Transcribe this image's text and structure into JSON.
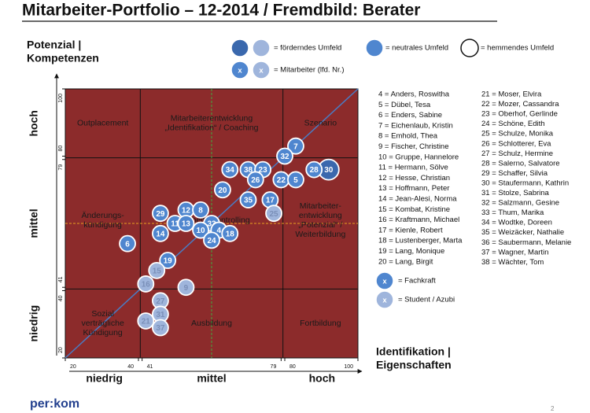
{
  "chart_data": {
    "type": "scatter",
    "title": "Mitarbeiter-Portfolio – 12-2014 / Fremdbild: Berater",
    "y_label": [
      "Potenzial |",
      "Kompetenzen"
    ],
    "x_label": [
      "Identifikation |",
      "Eigenschaften"
    ],
    "xlim": [
      20,
      100
    ],
    "ylim": [
      20,
      100
    ],
    "xticks": [
      20,
      40,
      41,
      79,
      80,
      100
    ],
    "yticks": [
      20,
      40,
      41,
      79,
      80,
      100
    ],
    "x_bands": [
      "niedrig",
      "mittel",
      "hoch"
    ],
    "y_bands": [
      "niedrig",
      "mittel",
      "hoch"
    ],
    "plot_color": "#8c2b2b",
    "x_ref_line": 60,
    "x_ref_color": "#3fae3f",
    "y_ref_line": 60,
    "y_ref_color": "#e8a020",
    "diagonal_color": "#4a7cc4",
    "regions": [
      {
        "lines": [
          "Outplacement"
        ]
      },
      {
        "lines": [
          "Mitarbeiterentwicklung",
          "„Identifikation“ / Coaching"
        ]
      },
      {
        "lines": [
          "Szenario"
        ]
      },
      {
        "lines": [
          "Änderungs-",
          "kündigung"
        ]
      },
      {
        "lines": [
          "Mitarbeitercontrolling"
        ]
      },
      {
        "lines": [
          "Mitarbeiter-",
          "entwicklung",
          "„Potenzial“ /",
          "Weiterbildung"
        ]
      },
      {
        "lines": [
          "Sozial",
          "verträgliche",
          "Kündigung"
        ]
      },
      {
        "lines": [
          "Ausbildung"
        ]
      },
      {
        "lines": [
          "Fortbildung"
        ]
      }
    ],
    "series": [
      {
        "name": "= förderndes Umfeld",
        "color": "#3a68ad",
        "labels": [
          30
        ],
        "x": [
          92
        ],
        "values": [
          76
        ]
      },
      {
        "name": "= neutrales Umfeld",
        "color": "#4f86cf",
        "labels": [
          7,
          32,
          28,
          34,
          38,
          23,
          26,
          22,
          5,
          20,
          35,
          17,
          12,
          8,
          29,
          11,
          13,
          33,
          10,
          4,
          18,
          24,
          14,
          6,
          19
        ],
        "x": [
          83,
          80,
          88,
          65,
          70,
          74,
          72,
          79,
          83,
          63,
          70,
          76,
          53,
          57,
          46,
          50,
          53,
          60,
          57,
          62,
          65,
          60,
          46,
          37,
          48
        ],
        "values": [
          83,
          80,
          76,
          76,
          76,
          76,
          73,
          73,
          73,
          70,
          67,
          67,
          64,
          64,
          63,
          60,
          60,
          60,
          58,
          58,
          57,
          55,
          57,
          54,
          49
        ]
      },
      {
        "name": "= Student / Azubi",
        "color": "#9fb5dc",
        "labels": [
          25,
          15,
          16,
          9,
          27,
          31,
          21,
          37
        ],
        "x": [
          77,
          45,
          42,
          53,
          46,
          46,
          42,
          46
        ],
        "values": [
          63,
          46,
          42,
          41,
          37,
          33,
          31,
          29
        ]
      }
    ],
    "legend_symbol": "x",
    "legend_extra": [
      "= hemmendes Umfeld",
      "= Mitarbeiter (lfd. Nr.)",
      "= Fachkraft"
    ],
    "names_left": [
      "4 = Anders, Roswitha",
      "5 = Dübel, Tesa",
      "6 = Enders, Sabine",
      "7 = Eichenlaub, Kristin",
      "8 = Emhold, Thea",
      "9 = Fischer, Christine",
      "10 = Gruppe, Hannelore",
      "11 = Hermann, Sölve",
      "12 = Hesse, Christian",
      "13 = Hoffmann, Peter",
      "14 = Jean-Alesi, Norma",
      "15 = Kombat, Kristine",
      "16 = Kraftmann, Michael",
      "17 = Kienle, Robert",
      "18 = Lustenberger,  Marta",
      "19 = Lang, Monique",
      "20 = Lang, Birgit"
    ],
    "names_right": [
      "21 = Moser, Elvira",
      "22 = Mozer, Cassandra",
      "23 = Oberhof, Gerlinde",
      "24 = Schöne, Edith",
      "25 = Schulze, Monika",
      "26 = Schlotterer, Eva",
      "27 = Schulz, Hermine",
      "28 = Salerno, Salvatore",
      "29 = Schaffer, Silvia",
      "30 = Staufermann, Kathrin",
      "31 = Stolze, Sabrina",
      "32 = Salzmann, Gesine",
      "33 = Thum, Marika",
      "34 = Wodtke, Doreen",
      "35 = Weizäcker, Nathalie",
      "36 = Saubermann, Melanie",
      "37 = Wagner, Martin",
      "38 = Wächter, Tom"
    ],
    "logo": "per:kom",
    "page_number": "2"
  }
}
